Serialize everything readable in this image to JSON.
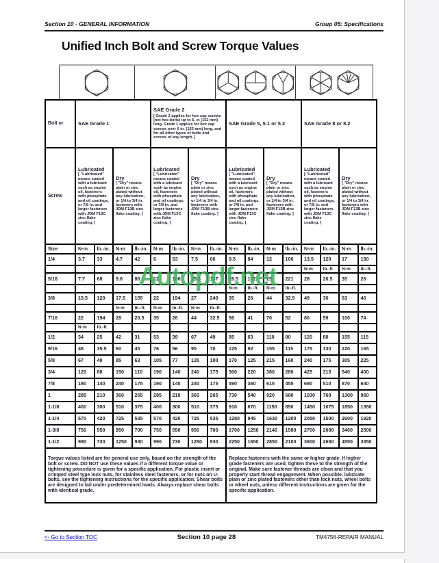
{
  "page_header": {
    "left": "Section 10 - GENERAL INFORMATION",
    "right": "Group 05: Specifications"
  },
  "title": "Unified Inch Bolt and Screw Torque Values",
  "watermark": "Autopdf.net",
  "bolt_icons": [
    "plain-hex-grade1",
    "plain-hex-grade2",
    "hex-3-marks",
    "hex-3-marks-rotated",
    "hex-3-marks-rotated-2",
    "hex-6-marks",
    "hex-fan-marks"
  ],
  "table": {
    "corner_top": "Bolt or",
    "corner_bottom": "Screw",
    "grades": [
      {
        "label": "SAE Grade 1",
        "note": ""
      },
      {
        "label": "SAE Grade 2",
        "note": "[ Grade 2 applies for hex cap screws (not hex bolts) up to 6. in (152 mm) long. Grade 1 applies for hex cap screws over 6 in. (152 mm) long, and for all other types of bolts and screws of any length. ]"
      },
      {
        "label": "SAE Grade 5, 5.1 or 5.2",
        "note": ""
      },
      {
        "label": "SAE Grade 8 or 8.2",
        "note": ""
      }
    ],
    "lubricated_label": "Lubricated",
    "lubricated_note": "[ \"Lubricated\" means coated with a lubricant such as engine oil, fasteners with phosphate and oil coatings, or 7/8 in. and larger fasteners with JDM F13C zinc flake coating. ]",
    "dry_label": "Dry",
    "dry_note": "[ \"Dry\" means plain or zinc plated without any lubrication, or 1/4 to 3/4 in. fasteners with JDM F13B zinc flake coating. ]",
    "size_label": "Size",
    "unit_nm": "N·m",
    "unit_lbin": "lb.-in.",
    "unit_lbft": "lb.-ft.",
    "rows": [
      {
        "size": "1/4",
        "values": [
          "3.7",
          "33",
          "4.7",
          "42",
          "6",
          "53",
          "7.5",
          "66",
          "9.5",
          "84",
          "12",
          "106",
          "13.5",
          "120",
          "17",
          "150"
        ]
      },
      {
        "size": "",
        "units": [
          "",
          "",
          "",
          "",
          "",
          "",
          "",
          "",
          "",
          "",
          "",
          "",
          "N·m",
          "lb.-ft.",
          "N·m",
          "lb.-ft."
        ]
      },
      {
        "size": "5/16",
        "values": [
          "7.7",
          "68",
          "9.8",
          "86",
          "12",
          "106",
          "15.5",
          "137",
          "19.5",
          "172",
          "25",
          "221",
          "28",
          "20.5",
          "35",
          "26"
        ]
      },
      {
        "size": "",
        "units": [
          "",
          "",
          "",
          "",
          "",
          "",
          "",
          "",
          "N·m",
          "lb.-ft.",
          "N·m",
          "lb.-ft.",
          "",
          "",
          "",
          ""
        ]
      },
      {
        "size": "3/8",
        "values": [
          "13.5",
          "120",
          "17.5",
          "155",
          "22",
          "194",
          "27",
          "240",
          "35",
          "26",
          "44",
          "32.5",
          "49",
          "36",
          "63",
          "46"
        ]
      },
      {
        "size": "",
        "units": [
          "",
          "",
          "N·m",
          "lb.-ft.",
          "N·m",
          "lb.-ft.",
          "N·m",
          "lb.-ft.",
          "",
          "",
          "",
          "",
          "",
          "",
          "",
          ""
        ]
      },
      {
        "size": "7/16",
        "values": [
          "22",
          "194",
          "28",
          "20.5",
          "35",
          "26",
          "44",
          "32.5",
          "56",
          "41",
          "70",
          "52",
          "80",
          "59",
          "100",
          "74"
        ]
      },
      {
        "size": "",
        "units": [
          "N·m",
          "lb.-ft.",
          "",
          "",
          "",
          "",
          "",
          "",
          "",
          "",
          "",
          "",
          "",
          "",
          "",
          ""
        ]
      },
      {
        "size": "1/2",
        "values": [
          "34",
          "25",
          "42",
          "31",
          "53",
          "39",
          "67",
          "49",
          "85",
          "63",
          "110",
          "80",
          "120",
          "88",
          "155",
          "115"
        ]
      },
      {
        "size": "9/16",
        "values": [
          "48",
          "35.5",
          "60",
          "45",
          "76",
          "56",
          "95",
          "70",
          "125",
          "92",
          "155",
          "115",
          "175",
          "130",
          "220",
          "165"
        ]
      },
      {
        "size": "5/8",
        "values": [
          "67",
          "49",
          "85",
          "63",
          "105",
          "77",
          "135",
          "100",
          "170",
          "125",
          "215",
          "160",
          "240",
          "175",
          "305",
          "225"
        ]
      },
      {
        "size": "3/4",
        "values": [
          "120",
          "88",
          "150",
          "110",
          "190",
          "140",
          "240",
          "175",
          "300",
          "220",
          "380",
          "280",
          "425",
          "315",
          "540",
          "400"
        ]
      },
      {
        "size": "7/8",
        "values": [
          "190",
          "140",
          "240",
          "175",
          "190",
          "140",
          "240",
          "175",
          "490",
          "360",
          "615",
          "455",
          "690",
          "510",
          "870",
          "640"
        ]
      },
      {
        "size": "1",
        "values": [
          "285",
          "210",
          "360",
          "265",
          "285",
          "210",
          "360",
          "265",
          "730",
          "540",
          "920",
          "680",
          "1030",
          "760",
          "1300",
          "960"
        ]
      },
      {
        "size": "1-1/8",
        "values": [
          "400",
          "300",
          "510",
          "375",
          "400",
          "300",
          "510",
          "375",
          "910",
          "670",
          "1150",
          "850",
          "1450",
          "1075",
          "1850",
          "1350"
        ]
      },
      {
        "size": "1-1/4",
        "values": [
          "570",
          "420",
          "725",
          "535",
          "570",
          "420",
          "725",
          "535",
          "1280",
          "945",
          "1630",
          "1200",
          "2050",
          "1500",
          "2600",
          "1920"
        ]
      },
      {
        "size": "1-3/8",
        "values": [
          "750",
          "550",
          "950",
          "700",
          "750",
          "550",
          "950",
          "700",
          "1700",
          "1250",
          "2140",
          "1580",
          "2700",
          "2000",
          "3400",
          "2500"
        ]
      },
      {
        "size": "1-1/2",
        "values": [
          "990",
          "730",
          "1250",
          "930",
          "990",
          "730",
          "1250",
          "930",
          "2250",
          "1650",
          "2850",
          "2100",
          "3600",
          "2650",
          "4550",
          "3350"
        ]
      }
    ]
  },
  "notes": {
    "left": "Torque values listed are for general use only, based on the strength of the bolt or screw. DO NOT use these values if a different torque value or tightening procedure is given for a specific application. For plastic insert or crimped steel type lock nuts, for stainless steel fasteners, or for nuts on U-bolts, see the tightening instructions for the specific application. Shear bolts are designed to fail under predetermined loads. Always replace shear bolts with identical grade.",
    "right": "Replace fasteners with the same or higher grade. If higher grade fasteners are used, tighten these to the strength of the original. Make sure fastener threads are clean and that you properly start thread engagement. When possible, lubricate plain or zinc plated fasteners other than lock nuts, wheel bolts or wheel nuts, unless different instructions are given for the specific application."
  },
  "page_footer": {
    "link": "<- Go to Section TOC",
    "center": "Section 10 page 28",
    "right": "TM4756-REPAIR MANUAL"
  }
}
